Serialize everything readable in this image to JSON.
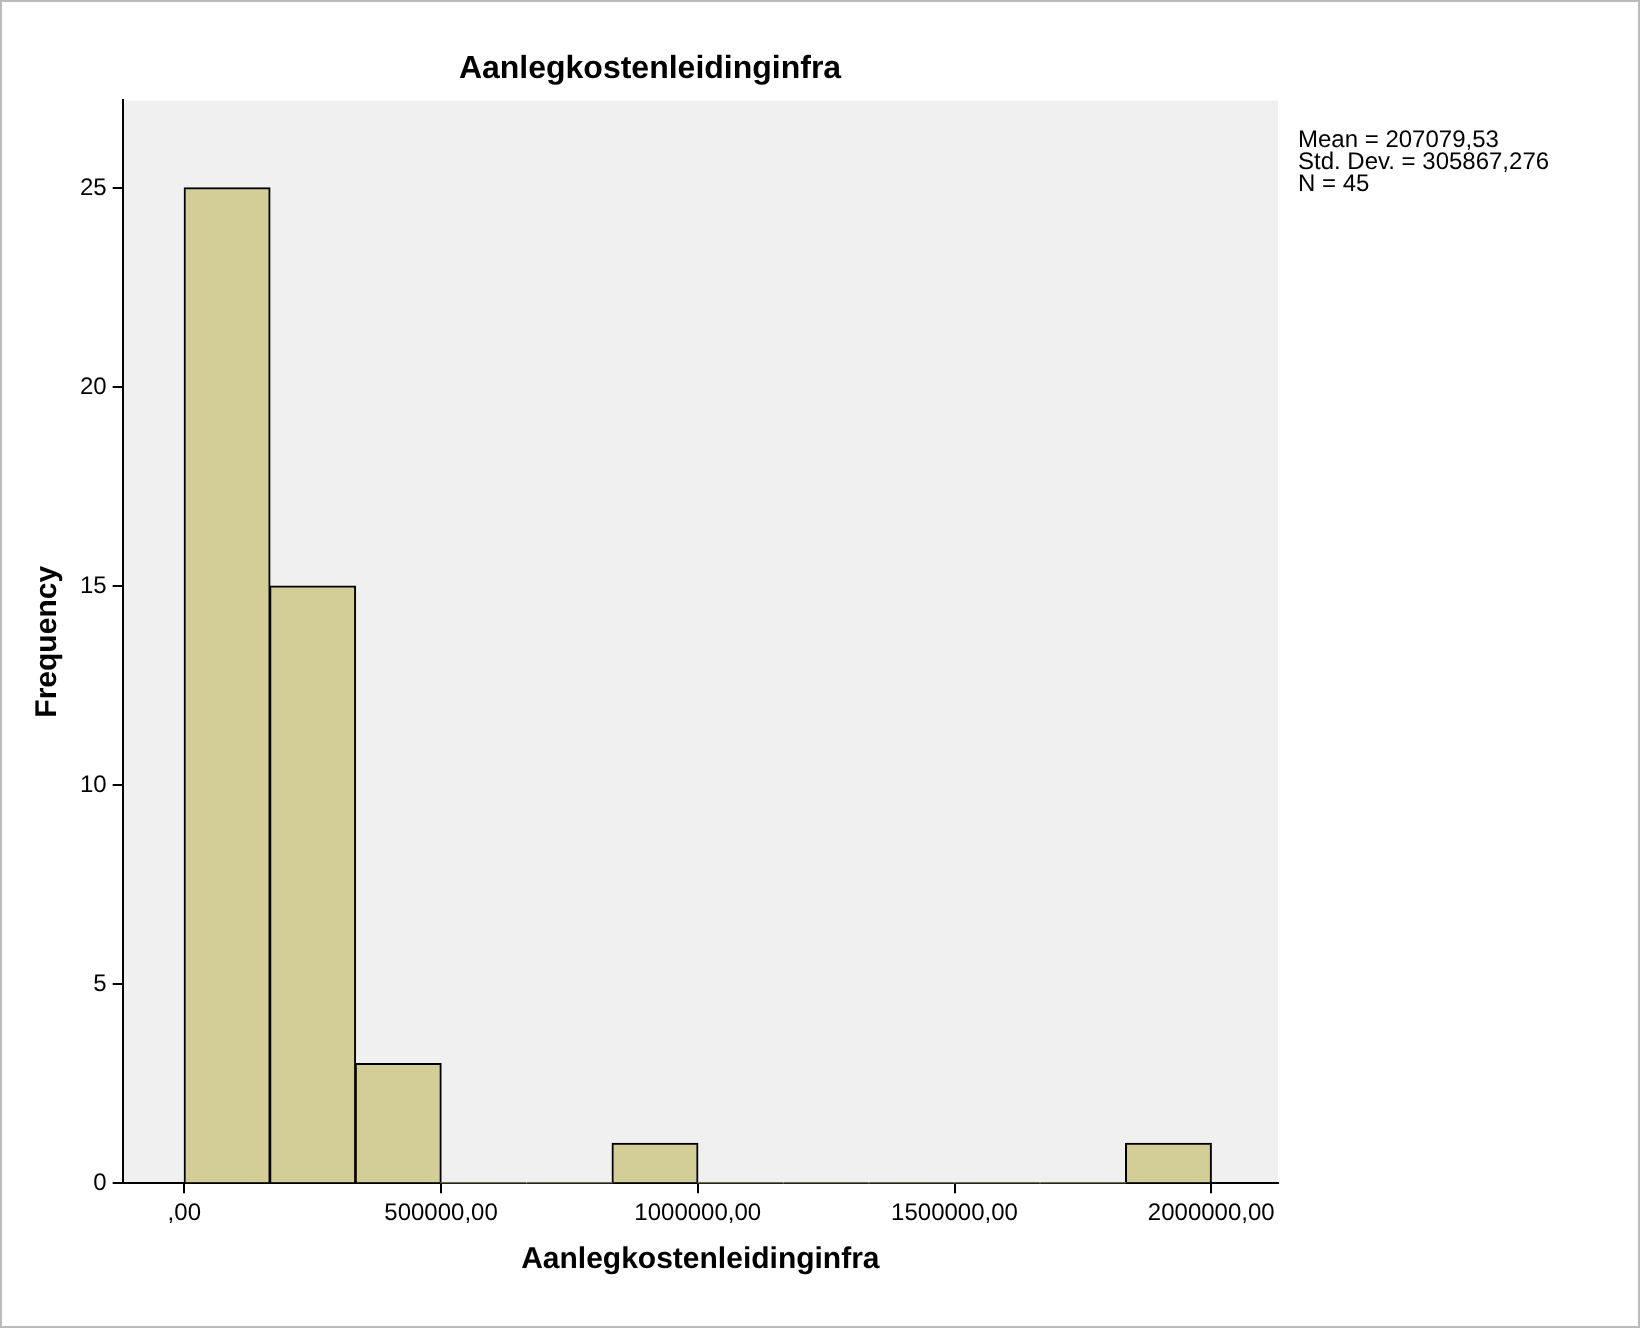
{
  "chart_data": {
    "type": "histogram",
    "title": "Aanlegkostenleidinginfra",
    "xlabel": "Aanlegkostenleidinginfra",
    "ylabel": "Frequency",
    "bins": [
      0,
      166667,
      333333,
      500000,
      666667,
      833333,
      1000000,
      1166667,
      1333333,
      1500000,
      1666667,
      1833333,
      2000000
    ],
    "values": [
      25,
      15,
      3,
      0,
      0,
      1,
      0,
      0,
      0,
      0,
      0,
      1
    ],
    "color": "#d3ce97",
    "xlim": [
      -120000,
      2130000
    ],
    "xticks": [
      {
        "value": 0,
        "label": ",00"
      },
      {
        "value": 500000,
        "label": "500000,00"
      },
      {
        "value": 1000000,
        "label": "1000000,00"
      },
      {
        "value": 1500000,
        "label": "1500000,00"
      },
      {
        "value": 2000000,
        "label": "2000000,00"
      }
    ],
    "ylim": [
      0,
      27.2
    ],
    "yticks": [
      0,
      5,
      10,
      15,
      20,
      25
    ],
    "grid": false,
    "legend": false,
    "annotations": [
      "Mean = 207079,53",
      "Std. Dev. = 305867,276",
      "N = 45"
    ]
  }
}
